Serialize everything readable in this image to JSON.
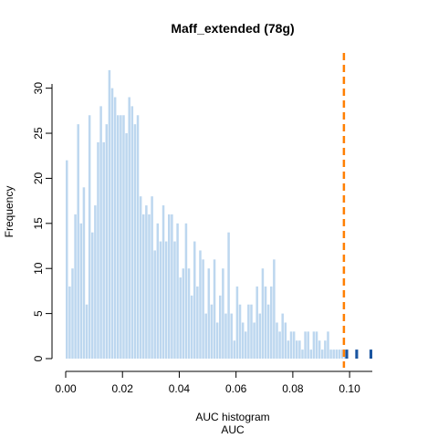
{
  "chart_data": {
    "type": "bar",
    "title": "Maff_extended (78g)",
    "xlabel_line1": "AUC histogram",
    "xlabel_line2": "AUC",
    "ylabel": "Frequency",
    "xlim": [
      0.0,
      0.108
    ],
    "ylim": [
      0,
      33
    ],
    "x_ticks": [
      "0.00",
      "0.02",
      "0.04",
      "0.06",
      "0.08",
      "0.10"
    ],
    "y_ticks": [
      "0",
      "5",
      "10",
      "15",
      "20",
      "25",
      "30"
    ],
    "bin_width": 0.001,
    "counts": [
      22,
      8,
      10,
      16,
      26,
      15,
      19,
      6,
      27,
      14,
      17,
      24,
      28,
      24,
      26,
      32,
      30,
      29,
      27,
      27,
      27,
      25,
      29,
      28,
      26,
      27,
      18,
      16,
      17,
      16,
      18,
      12,
      15,
      13,
      17,
      13,
      16,
      16,
      13,
      15,
      9,
      10,
      15,
      10,
      7,
      13,
      8,
      12,
      11,
      5,
      10,
      6,
      11,
      4,
      7,
      10,
      5,
      14,
      5,
      2,
      8,
      6,
      4,
      3,
      6,
      6,
      4,
      8,
      5,
      10,
      8,
      6,
      8,
      11,
      4,
      3,
      5,
      4,
      2,
      3,
      3,
      2,
      2,
      1,
      3,
      3,
      1,
      3,
      3,
      2,
      1,
      2,
      3,
      1,
      1,
      1,
      1,
      1,
      1
    ],
    "highlight_bins": [
      {
        "x": 0.099,
        "count": 1
      },
      {
        "x": 0.1025,
        "count": 1
      },
      {
        "x": 0.1075,
        "count": 1
      }
    ],
    "vline_x": 0.098,
    "colors": {
      "bars": "#bdd7ef",
      "highlight": "#1a55a0",
      "vline": "#ff7f00"
    }
  }
}
